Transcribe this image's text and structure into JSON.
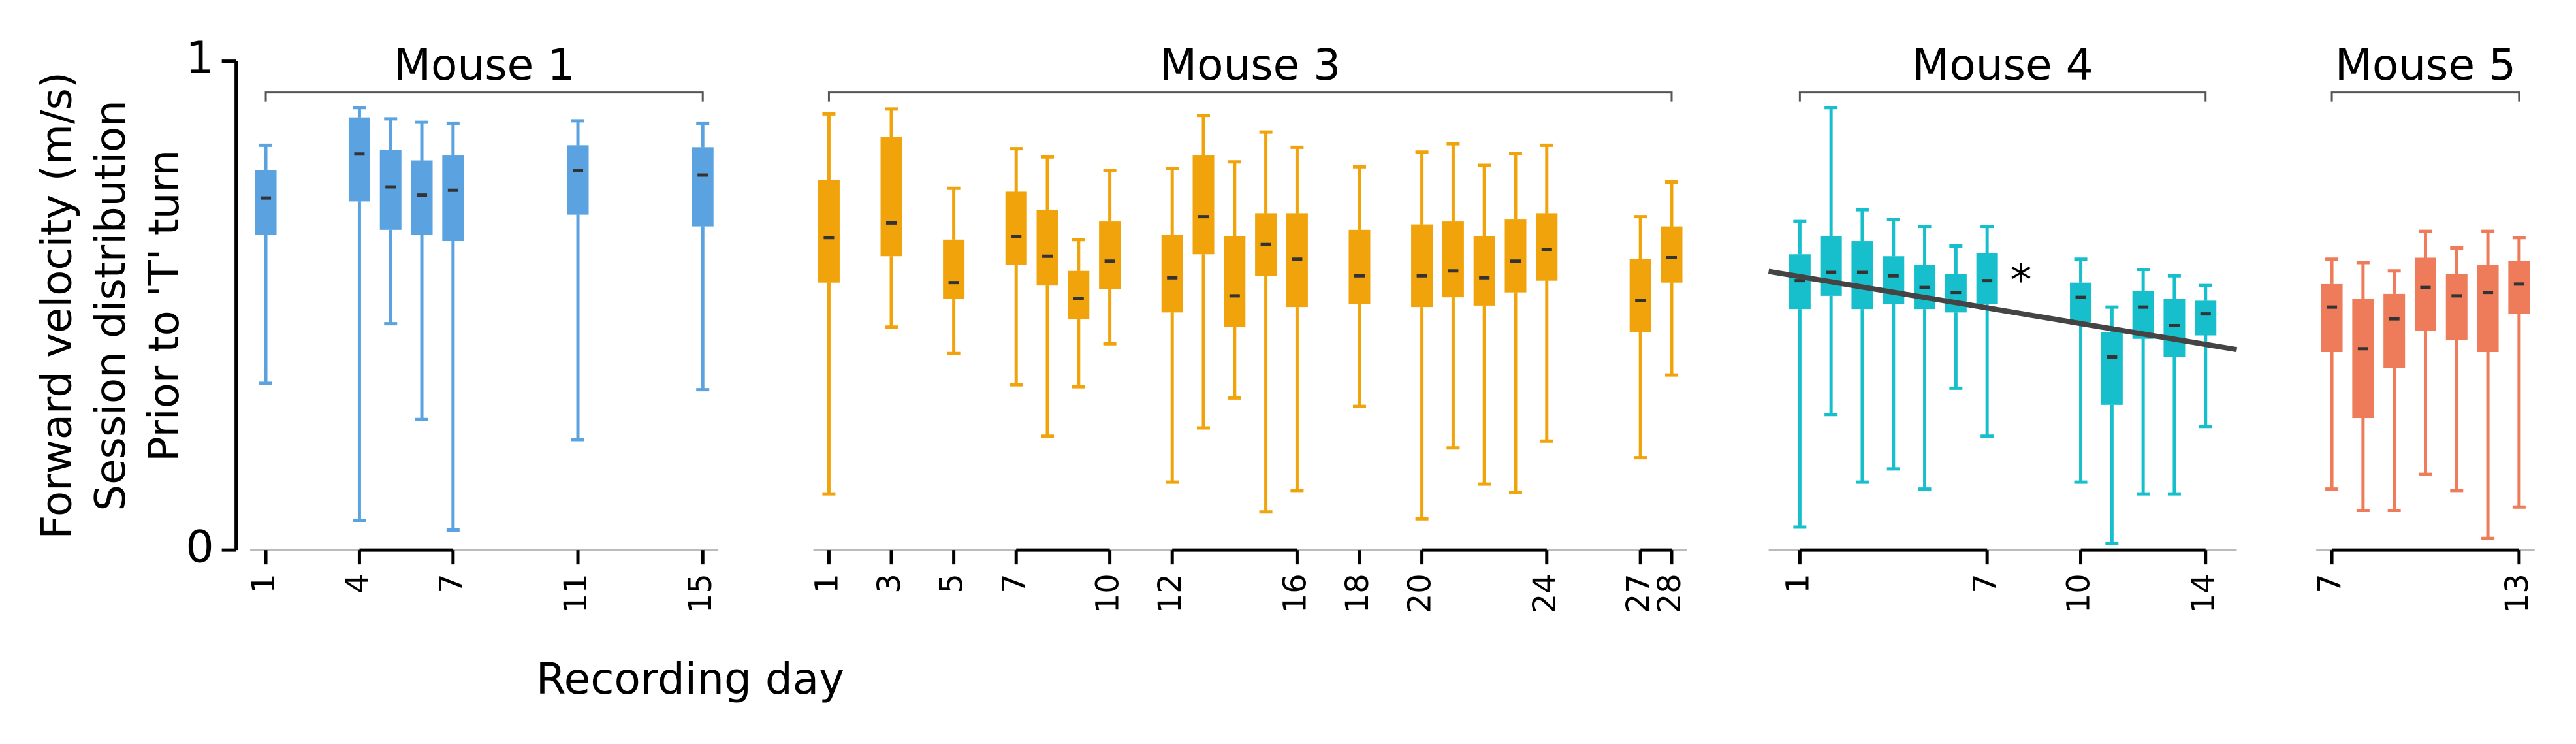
{
  "figure": {
    "ylabel": [
      "Forward velocity (m/s)",
      "Session distribution",
      "Prior to 'T' turn"
    ],
    "xlabel": "Recording day",
    "ylim": [
      0,
      1
    ],
    "yticks": [
      0,
      1
    ]
  },
  "chart_data": [
    {
      "type": "box",
      "title": "Mouse 1",
      "color": "#5ba3e0",
      "xlim": [
        0.5,
        15.5
      ],
      "xticks": [
        1,
        4,
        7,
        11,
        15
      ],
      "x": [
        1,
        4,
        5,
        6,
        7,
        11,
        15
      ],
      "boxes": [
        {
          "whislo": 0.341,
          "q1": 0.645,
          "med": 0.72,
          "q3": 0.777,
          "whishi": 0.828
        },
        {
          "whislo": 0.061,
          "q1": 0.713,
          "med": 0.81,
          "q3": 0.885,
          "whishi": 0.905
        },
        {
          "whislo": 0.463,
          "q1": 0.655,
          "med": 0.743,
          "q3": 0.818,
          "whishi": 0.882
        },
        {
          "whislo": 0.267,
          "q1": 0.645,
          "med": 0.726,
          "q3": 0.797,
          "whishi": 0.875
        },
        {
          "whislo": 0.041,
          "q1": 0.632,
          "med": 0.736,
          "q3": 0.807,
          "whishi": 0.872
        },
        {
          "whislo": 0.226,
          "q1": 0.686,
          "med": 0.777,
          "q3": 0.828,
          "whishi": 0.878
        },
        {
          "whislo": 0.328,
          "q1": 0.662,
          "med": 0.767,
          "q3": 0.824,
          "whishi": 0.872
        }
      ]
    },
    {
      "type": "box",
      "title": "Mouse 3",
      "color": "#f0a30a",
      "xlim": [
        0.5,
        28.5
      ],
      "xticks": [
        1,
        3,
        5,
        7,
        10,
        12,
        16,
        18,
        20,
        24,
        27,
        28
      ],
      "x": [
        1,
        3,
        5,
        7,
        8,
        9,
        10,
        12,
        13,
        14,
        15,
        16,
        18,
        20,
        21,
        22,
        23,
        24,
        27,
        28
      ],
      "boxes": [
        {
          "whislo": 0.115,
          "q1": 0.547,
          "med": 0.639,
          "q3": 0.757,
          "whishi": 0.892
        },
        {
          "whislo": 0.456,
          "q1": 0.601,
          "med": 0.669,
          "q3": 0.845,
          "whishi": 0.902
        },
        {
          "whislo": 0.402,
          "q1": 0.514,
          "med": 0.547,
          "q3": 0.635,
          "whishi": 0.74
        },
        {
          "whislo": 0.338,
          "q1": 0.584,
          "med": 0.642,
          "q3": 0.733,
          "whishi": 0.821
        },
        {
          "whislo": 0.233,
          "q1": 0.541,
          "med": 0.601,
          "q3": 0.696,
          "whishi": 0.804
        },
        {
          "whislo": 0.334,
          "q1": 0.473,
          "med": 0.514,
          "q3": 0.571,
          "whishi": 0.635
        },
        {
          "whislo": 0.422,
          "q1": 0.534,
          "med": 0.591,
          "q3": 0.672,
          "whishi": 0.777
        },
        {
          "whislo": 0.139,
          "q1": 0.486,
          "med": 0.557,
          "q3": 0.645,
          "whishi": 0.78
        },
        {
          "whislo": 0.25,
          "q1": 0.605,
          "med": 0.682,
          "q3": 0.807,
          "whishi": 0.889
        },
        {
          "whislo": 0.311,
          "q1": 0.456,
          "med": 0.52,
          "q3": 0.642,
          "whishi": 0.794
        },
        {
          "whislo": 0.078,
          "q1": 0.561,
          "med": 0.625,
          "q3": 0.689,
          "whishi": 0.855
        },
        {
          "whislo": 0.122,
          "q1": 0.497,
          "med": 0.595,
          "q3": 0.689,
          "whishi": 0.824
        },
        {
          "whislo": 0.294,
          "q1": 0.503,
          "med": 0.561,
          "q3": 0.655,
          "whishi": 0.784
        },
        {
          "whislo": 0.064,
          "q1": 0.497,
          "med": 0.561,
          "q3": 0.666,
          "whishi": 0.814
        },
        {
          "whislo": 0.209,
          "q1": 0.517,
          "med": 0.571,
          "q3": 0.672,
          "whishi": 0.831
        },
        {
          "whislo": 0.135,
          "q1": 0.5,
          "med": 0.557,
          "q3": 0.642,
          "whishi": 0.787
        },
        {
          "whislo": 0.118,
          "q1": 0.527,
          "med": 0.591,
          "q3": 0.676,
          "whishi": 0.811
        },
        {
          "whislo": 0.223,
          "q1": 0.551,
          "med": 0.615,
          "q3": 0.689,
          "whishi": 0.828
        },
        {
          "whislo": 0.189,
          "q1": 0.446,
          "med": 0.51,
          "q3": 0.595,
          "whishi": 0.682
        },
        {
          "whislo": 0.358,
          "q1": 0.547,
          "med": 0.598,
          "q3": 0.662,
          "whishi": 0.753
        }
      ]
    },
    {
      "type": "box",
      "title": "Mouse 4",
      "color": "#17bfcd",
      "xlim": [
        0,
        15
      ],
      "xticks": [
        1,
        7,
        10,
        14
      ],
      "x": [
        1,
        2,
        3,
        4,
        5,
        6,
        7,
        10,
        11,
        12,
        13,
        14
      ],
      "boxes": [
        {
          "whislo": 0.047,
          "q1": 0.493,
          "med": 0.551,
          "q3": 0.605,
          "whishi": 0.672
        },
        {
          "whislo": 0.277,
          "q1": 0.52,
          "med": 0.568,
          "q3": 0.642,
          "whishi": 0.905
        },
        {
          "whislo": 0.139,
          "q1": 0.493,
          "med": 0.568,
          "q3": 0.632,
          "whishi": 0.696
        },
        {
          "whislo": 0.166,
          "q1": 0.503,
          "med": 0.561,
          "q3": 0.601,
          "whishi": 0.676
        },
        {
          "whislo": 0.125,
          "q1": 0.493,
          "med": 0.537,
          "q3": 0.584,
          "whishi": 0.662
        },
        {
          "whislo": 0.331,
          "q1": 0.486,
          "med": 0.527,
          "q3": 0.564,
          "whishi": 0.622
        },
        {
          "whislo": 0.233,
          "q1": 0.503,
          "med": 0.551,
          "q3": 0.608,
          "whishi": 0.662
        },
        {
          "whislo": 0.139,
          "q1": 0.466,
          "med": 0.517,
          "q3": 0.547,
          "whishi": 0.595
        },
        {
          "whislo": 0.014,
          "q1": 0.297,
          "med": 0.395,
          "q3": 0.446,
          "whishi": 0.497
        },
        {
          "whislo": 0.115,
          "q1": 0.432,
          "med": 0.497,
          "q3": 0.53,
          "whishi": 0.574
        },
        {
          "whislo": 0.115,
          "q1": 0.395,
          "med": 0.459,
          "q3": 0.514,
          "whishi": 0.561
        },
        {
          "whislo": 0.253,
          "q1": 0.439,
          "med": 0.483,
          "q3": 0.51,
          "whishi": 0.541
        }
      ],
      "trend": {
        "color": "#444444",
        "x": [
          0,
          15
        ],
        "y": [
          0.57,
          0.41
        ]
      },
      "annotation": "*"
    },
    {
      "type": "box",
      "title": "Mouse 5",
      "color": "#ee7b5a",
      "xlim": [
        6.5,
        13.5
      ],
      "xticks": [
        7,
        13
      ],
      "x": [
        7,
        8,
        9,
        10,
        11,
        12,
        13
      ],
      "boxes": [
        {
          "whislo": 0.125,
          "q1": 0.405,
          "med": 0.497,
          "q3": 0.544,
          "whishi": 0.595
        },
        {
          "whislo": 0.081,
          "q1": 0.27,
          "med": 0.412,
          "q3": 0.514,
          "whishi": 0.588
        },
        {
          "whislo": 0.081,
          "q1": 0.372,
          "med": 0.473,
          "q3": 0.524,
          "whishi": 0.571
        },
        {
          "whislo": 0.155,
          "q1": 0.449,
          "med": 0.537,
          "q3": 0.598,
          "whishi": 0.652
        },
        {
          "whislo": 0.122,
          "q1": 0.429,
          "med": 0.52,
          "q3": 0.564,
          "whishi": 0.618
        },
        {
          "whislo": 0.024,
          "q1": 0.405,
          "med": 0.527,
          "q3": 0.584,
          "whishi": 0.652
        },
        {
          "whislo": 0.088,
          "q1": 0.483,
          "med": 0.544,
          "q3": 0.591,
          "whishi": 0.639
        }
      ]
    }
  ]
}
